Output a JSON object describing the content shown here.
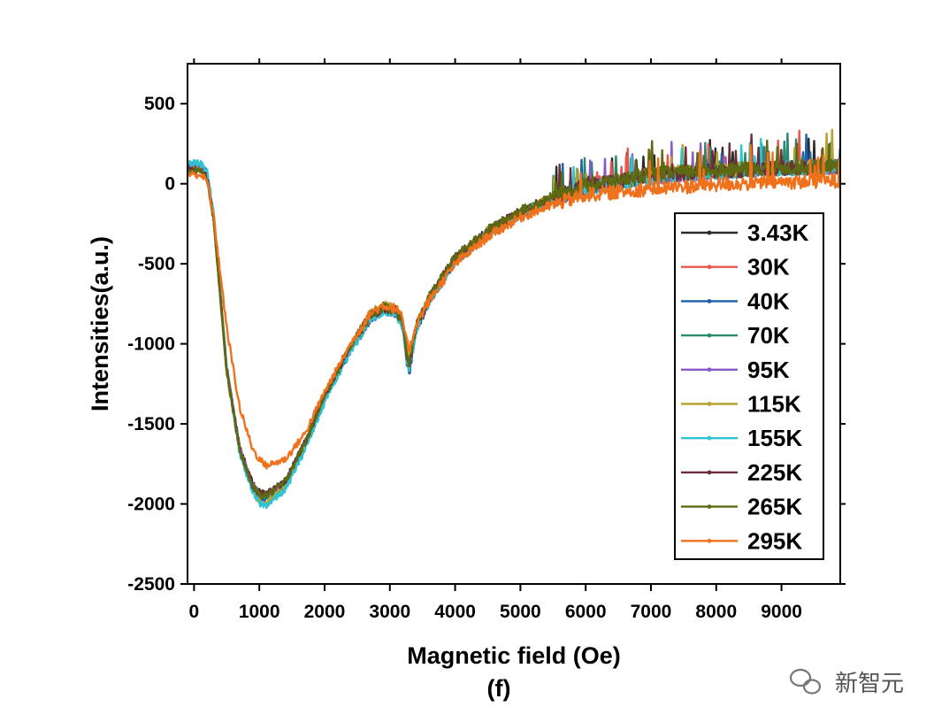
{
  "chart_data": {
    "type": "line",
    "title": "",
    "xlabel": "Magnetic field (Oe)",
    "ylabel": "Intensities(a.u.)",
    "caption": "(f)",
    "xlim": [
      -100,
      9900
    ],
    "ylim": [
      -2500,
      750
    ],
    "x_ticks": [
      0,
      1000,
      2000,
      3000,
      4000,
      5000,
      6000,
      7000,
      8000,
      9000
    ],
    "y_ticks": [
      500,
      0,
      -500,
      -1000,
      -1500,
      -2000,
      -2500
    ],
    "x": [
      -100,
      100,
      200,
      300,
      500,
      700,
      900,
      1000,
      1100,
      1200,
      1400,
      1700,
      2000,
      2400,
      2700,
      2900,
      3000,
      3100,
      3200,
      3250,
      3300,
      3400,
      3600,
      4000,
      4500,
      5000,
      5500,
      6000,
      7000,
      8000,
      9000,
      9900
    ],
    "series": [
      {
        "name": "3.43K",
        "color": "#2b2b2b",
        "values": [
          110,
          105,
          60,
          -200,
          -1150,
          -1650,
          -1880,
          -1930,
          -1940,
          -1920,
          -1860,
          -1620,
          -1330,
          -1020,
          -830,
          -780,
          -790,
          -800,
          -880,
          -1050,
          -1130,
          -900,
          -720,
          -470,
          -300,
          -180,
          -90,
          -20,
          50,
          80,
          100,
          110
        ]
      },
      {
        "name": "30K",
        "color": "#e8564f",
        "values": [
          105,
          100,
          55,
          -210,
          -1160,
          -1660,
          -1890,
          -1940,
          -1950,
          -1930,
          -1870,
          -1630,
          -1340,
          -1030,
          -840,
          -790,
          -800,
          -810,
          -890,
          -1060,
          -1140,
          -910,
          -730,
          -480,
          -310,
          -190,
          -100,
          -30,
          40,
          70,
          95,
          105
        ]
      },
      {
        "name": "40K",
        "color": "#1f5ea8",
        "values": [
          115,
          110,
          65,
          -195,
          -1150,
          -1660,
          -1900,
          -1960,
          -1970,
          -1940,
          -1880,
          -1640,
          -1350,
          -1040,
          -845,
          -790,
          -800,
          -815,
          -900,
          -1090,
          -1180,
          -915,
          -735,
          -480,
          -305,
          -185,
          -95,
          -25,
          45,
          75,
          100,
          110
        ]
      },
      {
        "name": "70K",
        "color": "#2a8a6d",
        "values": [
          100,
          95,
          50,
          -205,
          -1170,
          -1670,
          -1900,
          -1955,
          -1960,
          -1935,
          -1870,
          -1625,
          -1335,
          -1025,
          -835,
          -785,
          -795,
          -805,
          -885,
          -1055,
          -1135,
          -905,
          -725,
          -475,
          -305,
          -185,
          -95,
          -25,
          45,
          75,
          95,
          105
        ]
      },
      {
        "name": "95K",
        "color": "#8a5ac8",
        "values": [
          108,
          103,
          58,
          -202,
          -1155,
          -1655,
          -1885,
          -1935,
          -1945,
          -1925,
          -1865,
          -1625,
          -1335,
          -1025,
          -835,
          -785,
          -795,
          -805,
          -885,
          -1055,
          -1135,
          -905,
          -725,
          -475,
          -305,
          -185,
          -95,
          -25,
          45,
          75,
          98,
          108
        ]
      },
      {
        "name": "115K",
        "color": "#b5a230",
        "values": [
          95,
          90,
          45,
          -215,
          -1175,
          -1680,
          -1920,
          -1985,
          -2000,
          -1960,
          -1880,
          -1620,
          -1320,
          -1010,
          -815,
          -760,
          -770,
          -780,
          -870,
          -1020,
          -1100,
          -890,
          -715,
          -465,
          -295,
          -175,
          -85,
          -15,
          55,
          85,
          100,
          110
        ]
      },
      {
        "name": "155K",
        "color": "#2fc4d4",
        "values": [
          130,
          125,
          75,
          -185,
          -1150,
          -1680,
          -1930,
          -2000,
          -2010,
          -1980,
          -1910,
          -1660,
          -1360,
          -1045,
          -850,
          -795,
          -805,
          -820,
          -905,
          -1080,
          -1160,
          -920,
          -740,
          -485,
          -310,
          -190,
          -100,
          -30,
          40,
          70,
          95,
          105
        ]
      },
      {
        "name": "225K",
        "color": "#6b2f3a",
        "values": [
          90,
          85,
          40,
          -220,
          -1165,
          -1660,
          -1885,
          -1930,
          -1935,
          -1915,
          -1855,
          -1615,
          -1325,
          -1015,
          -825,
          -775,
          -785,
          -795,
          -875,
          -1045,
          -1125,
          -895,
          -715,
          -465,
          -295,
          -175,
          -85,
          -15,
          55,
          80,
          95,
          105
        ]
      },
      {
        "name": "265K",
        "color": "#5e6a12",
        "values": [
          85,
          80,
          35,
          -225,
          -1170,
          -1665,
          -1895,
          -1940,
          -1945,
          -1925,
          -1860,
          -1615,
          -1320,
          -1010,
          -820,
          -770,
          -780,
          -790,
          -870,
          -1040,
          -1120,
          -890,
          -710,
          -460,
          -290,
          -170,
          -80,
          -10,
          60,
          85,
          100,
          110
        ]
      },
      {
        "name": "295K",
        "color": "#f0711c",
        "values": [
          60,
          55,
          20,
          -200,
          -900,
          -1400,
          -1660,
          -1720,
          -1760,
          -1750,
          -1720,
          -1560,
          -1300,
          -1000,
          -810,
          -760,
          -770,
          -780,
          -850,
          -980,
          -1040,
          -880,
          -730,
          -500,
          -330,
          -210,
          -130,
          -70,
          -30,
          -5,
          10,
          20
        ]
      }
    ],
    "legend_position": "right-middle",
    "grid": false
  },
  "watermark": {
    "text": "新智元",
    "icon": "wechat-icon"
  },
  "icons": {
    "legend_marker": "line-with-dot-marker"
  }
}
